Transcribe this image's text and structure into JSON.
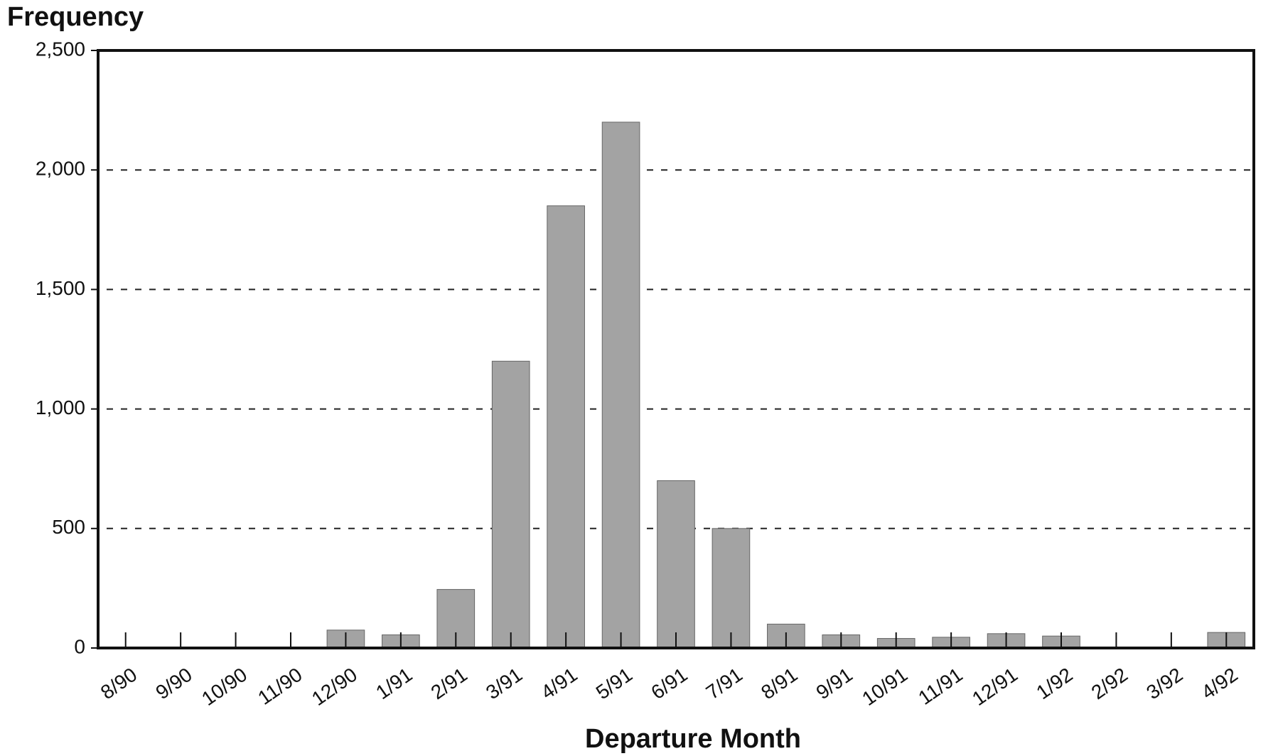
{
  "chart_data": {
    "type": "bar",
    "title": "Frequency",
    "x_label": "Departure Month",
    "categories": [
      "8/90",
      "9/90",
      "10/90",
      "11/90",
      "12/90",
      "1/91",
      "2/91",
      "3/91",
      "4/91",
      "5/91",
      "6/91",
      "7/91",
      "8/91",
      "9/91",
      "10/91",
      "11/91",
      "12/91",
      "1/92",
      "2/92",
      "3/92",
      "4/92"
    ],
    "values": [
      0,
      0,
      0,
      0,
      75,
      55,
      245,
      1200,
      1850,
      2200,
      700,
      500,
      100,
      55,
      40,
      45,
      60,
      50,
      0,
      0,
      65
    ],
    "color": "#a3a3a3",
    "ylim": [
      0,
      2500
    ],
    "yticks": [
      0,
      500,
      {
        "value": 1000,
        "label": "1,000"
      },
      {
        "value": 1500,
        "label": "1,500"
      },
      {
        "value": 2000,
        "label": "2,000"
      },
      {
        "value": 2500,
        "label": "2,500"
      }
    ],
    "grid": true
  }
}
